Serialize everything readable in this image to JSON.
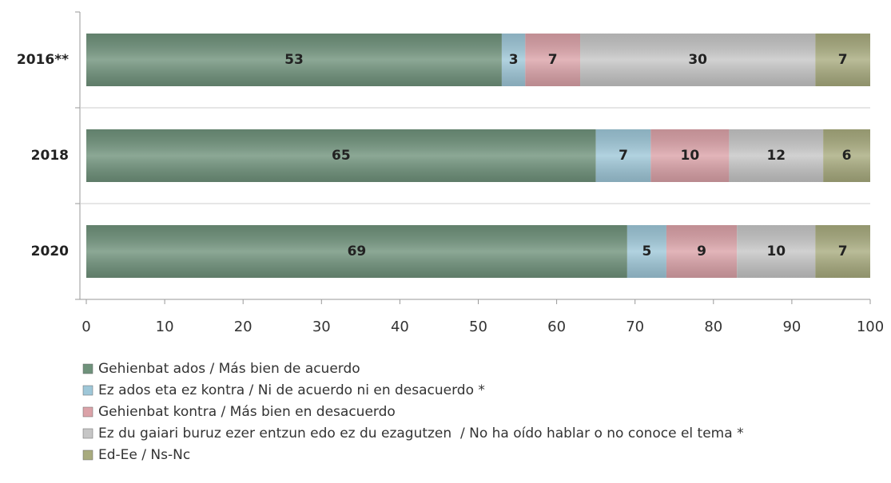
{
  "chart_data": {
    "type": "stacked_bar",
    "orientation": "horizontal",
    "categories": [
      "2016**",
      "2018",
      "2020"
    ],
    "series": [
      {
        "name": "Gehienbat ados / Más bien de acuerdo",
        "color": "#6f927b",
        "values": [
          53,
          65,
          69
        ]
      },
      {
        "name": "Ez ados eta ez kontra / Ni de acuerdo ni en desacuerdo *",
        "color": "#9ec7d8",
        "values": [
          3,
          7,
          5
        ]
      },
      {
        "name": "Gehienbat kontra / Más bien en desacuerdo",
        "color": "#dba2a8",
        "values": [
          7,
          10,
          9
        ]
      },
      {
        "name": "Ez du gaiari buruz ezer entzun edo ez du ezagutzen  / No ha oído hablar o no conoce el tema *",
        "color": "#c6c6c6",
        "values": [
          30,
          12,
          10
        ]
      },
      {
        "name": "Ed-Ee / Ns-Nc",
        "color": "#a8ab7e",
        "values": [
          7,
          6,
          7
        ]
      }
    ],
    "xlim": [
      0,
      100
    ],
    "xticks": [
      0,
      10,
      20,
      30,
      40,
      50,
      60,
      70,
      80,
      90,
      100
    ],
    "legend": "bottom"
  }
}
